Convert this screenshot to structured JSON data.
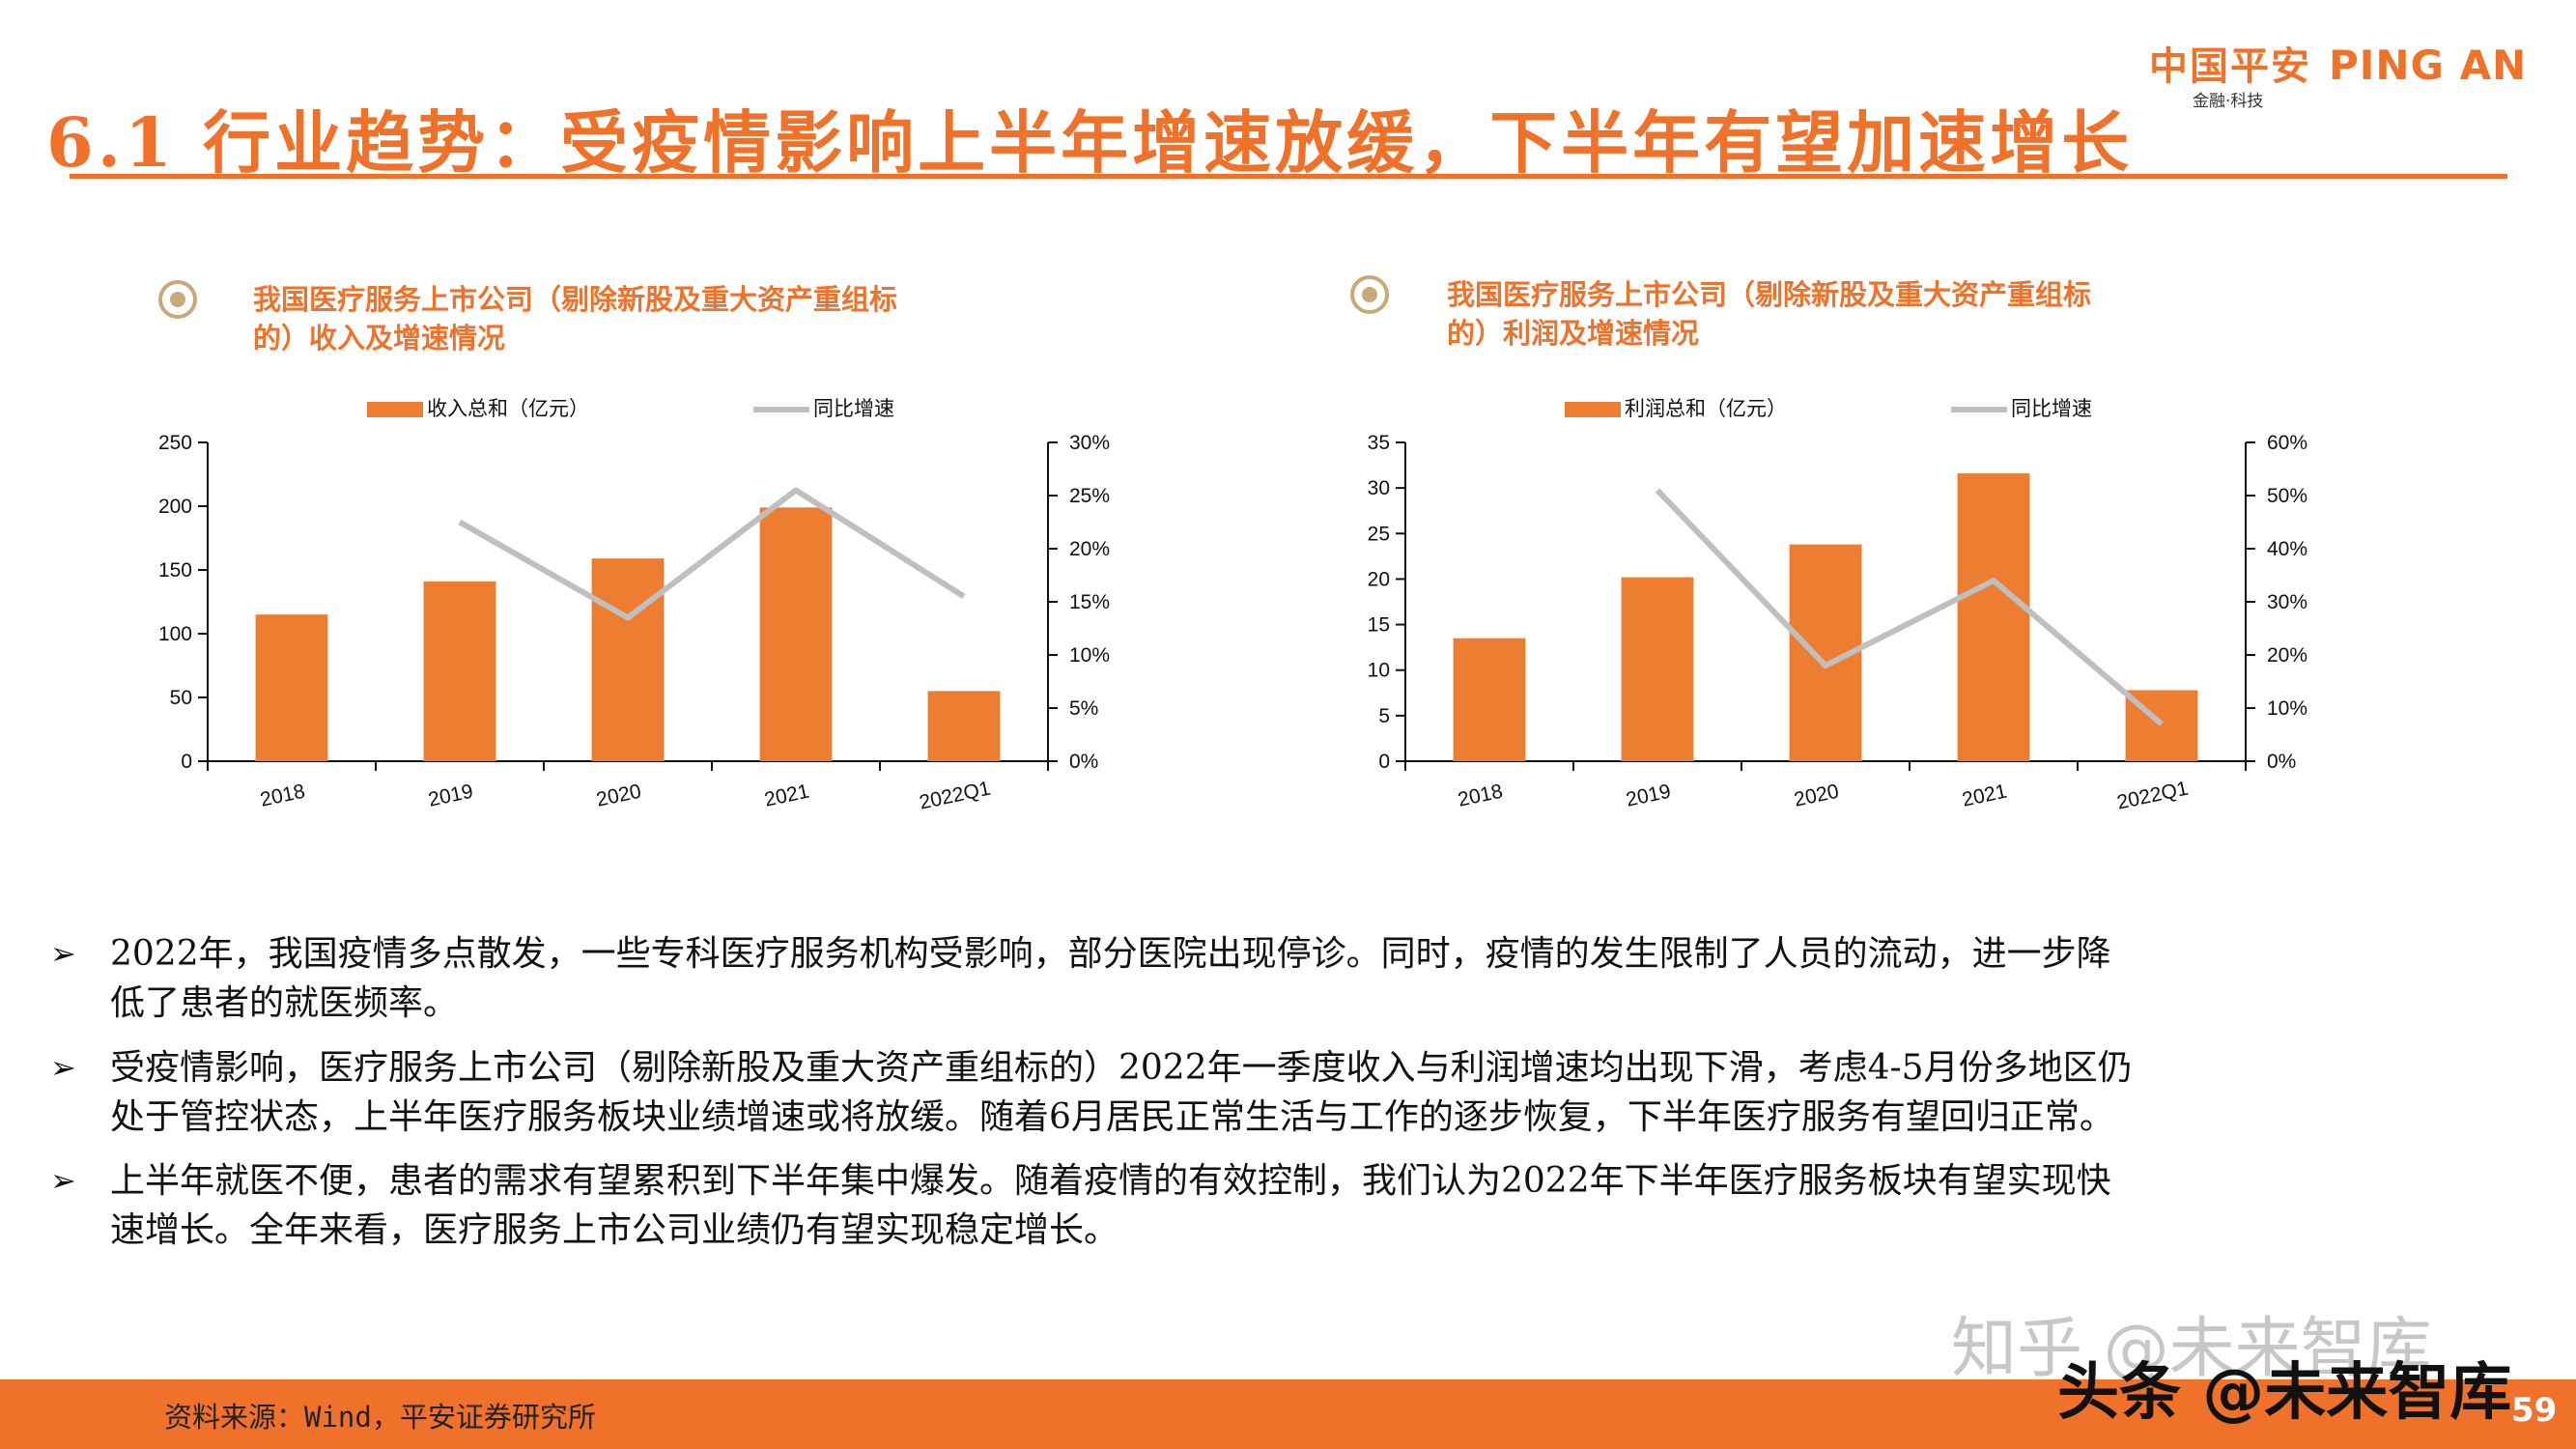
{
  "header": {
    "title": "6.1 行业趋势：受疫情影响上半年增速放缓，下半年有望加速增长",
    "logo_cn": "中国平安",
    "logo_en": "PING AN",
    "logo_sub": "金融·科技"
  },
  "charts": {
    "left_title_line1": "我国医疗服务上市公司（剔除新股及重大资产重组标",
    "left_title_line2": "的）收入及增速情况",
    "right_title_line1": "我国医疗服务上市公司（剔除新股及重大资产重组标",
    "right_title_line2": "的）利润及增速情况"
  },
  "chart_data": [
    {
      "type": "bar",
      "categories": [
        "2018",
        "2019",
        "2020",
        "2021",
        "2022Q1"
      ],
      "series": [
        {
          "name": "收入总和（亿元）",
          "type": "bar",
          "axis": "left",
          "values": [
            115,
            141,
            159,
            199,
            55
          ]
        },
        {
          "name": "同比增速",
          "type": "line",
          "axis": "right",
          "values": [
            null,
            0.225,
            0.135,
            0.255,
            0.155
          ]
        }
      ],
      "y_left_ticks": [
        "0",
        "50",
        "100",
        "150",
        "200",
        "250"
      ],
      "y_right_ticks": [
        "0%",
        "5%",
        "10%",
        "15%",
        "20%",
        "25%",
        "30%"
      ],
      "ylim_left": [
        0,
        250
      ],
      "ylim_right": [
        0,
        0.3
      ],
      "legend_position": "top",
      "colors": {
        "bar": "#ed7d31",
        "line": "#bfbfbf"
      }
    },
    {
      "type": "bar",
      "categories": [
        "2018",
        "2019",
        "2020",
        "2021",
        "2022Q1"
      ],
      "series": [
        {
          "name": "利润总和（亿元）",
          "type": "bar",
          "axis": "left",
          "values": [
            13.5,
            20.2,
            23.8,
            31.6,
            7.8
          ]
        },
        {
          "name": "同比增速",
          "type": "line",
          "axis": "right",
          "values": [
            null,
            0.51,
            0.18,
            0.34,
            0.07
          ]
        }
      ],
      "y_left_ticks": [
        "0",
        "5",
        "10",
        "15",
        "20",
        "25",
        "30",
        "35"
      ],
      "y_right_ticks": [
        "0%",
        "10%",
        "20%",
        "30%",
        "40%",
        "50%",
        "60%"
      ],
      "ylim_left": [
        0,
        35
      ],
      "ylim_right": [
        0,
        0.6
      ],
      "legend_position": "top",
      "colors": {
        "bar": "#ed7d31",
        "line": "#bfbfbf"
      }
    }
  ],
  "bullets": [
    {
      "line1": "2022年，我国疫情多点散发，一些专科医疗服务机构受影响，部分医院出现停诊。同时，疫情的发生限制了人员的流动，进一步降",
      "line2": "低了患者的就医频率。"
    },
    {
      "line1": "受疫情影响，医疗服务上市公司（剔除新股及重大资产重组标的）2022年一季度收入与利润增速均出现下滑，考虑4-5月份多地区仍",
      "line2": "处于管控状态，上半年医疗服务板块业绩增速或将放缓。随着6月居民正常生活与工作的逐步恢复，下半年医疗服务有望回归正常。"
    },
    {
      "line1": "上半年就医不便，患者的需求有望累积到下半年集中爆发。随着疫情的有效控制，我们认为2022年下半年医疗服务板块有望实现快",
      "line2": "速增长。全年来看，医疗服务上市公司业绩仍有望实现稳定增长。"
    }
  ],
  "footer": {
    "source": "资料来源：Wind，平安证券研究所",
    "page": "59",
    "watermark1": "知乎 @未来智库",
    "watermark2": "头条 @未来智库"
  }
}
